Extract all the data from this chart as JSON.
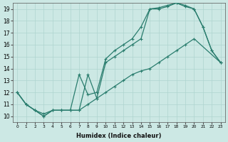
{
  "xlabel": "Humidex (Indice chaleur)",
  "bg_color": "#cce8e4",
  "grid_color": "#aed4cf",
  "line_color": "#2a7d6e",
  "xlim": [
    -0.5,
    23.5
  ],
  "ylim": [
    9.5,
    19.5
  ],
  "line1_x": [
    0,
    1,
    2,
    3,
    4,
    5,
    6,
    7,
    8,
    9,
    10,
    11,
    12,
    13,
    14,
    15,
    16,
    17,
    18,
    19,
    20,
    21,
    22,
    23
  ],
  "line1_y": [
    12.0,
    11.0,
    10.5,
    10.0,
    10.5,
    10.5,
    10.5,
    10.5,
    13.5,
    11.5,
    14.5,
    15.0,
    15.5,
    16.0,
    16.5,
    19.0,
    19.0,
    19.2,
    19.5,
    19.2,
    19.0,
    17.5,
    15.5,
    14.5
  ],
  "line2_x": [
    0,
    1,
    2,
    3,
    4,
    5,
    6,
    7,
    8,
    9,
    10,
    11,
    12,
    13,
    14,
    15,
    16,
    17,
    18,
    19,
    20,
    21,
    22,
    23
  ],
  "line2_y": [
    12.0,
    11.0,
    10.5,
    10.2,
    10.5,
    10.5,
    10.5,
    13.5,
    11.8,
    12.0,
    14.8,
    15.5,
    16.0,
    16.5,
    17.5,
    19.0,
    19.1,
    19.3,
    19.5,
    19.3,
    19.0,
    17.5,
    15.5,
    14.5
  ],
  "line3_x": [
    0,
    1,
    2,
    3,
    4,
    5,
    6,
    7,
    8,
    9,
    10,
    11,
    12,
    13,
    14,
    15,
    16,
    17,
    18,
    19,
    20,
    23
  ],
  "line3_y": [
    12.0,
    11.0,
    10.5,
    10.0,
    10.5,
    10.5,
    10.5,
    10.5,
    11.0,
    11.5,
    12.0,
    12.5,
    13.0,
    13.5,
    13.8,
    14.0,
    14.5,
    15.0,
    15.5,
    16.0,
    16.5,
    14.5
  ]
}
